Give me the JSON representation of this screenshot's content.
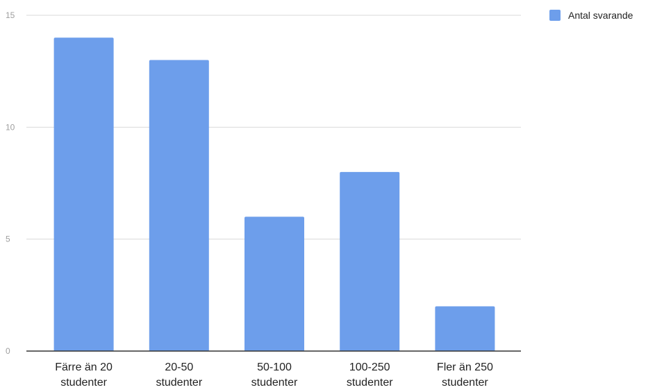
{
  "chart_data": {
    "type": "bar",
    "categories": [
      [
        "Färre än 20",
        "studenter"
      ],
      [
        "20-50",
        "studenter"
      ],
      [
        "50-100",
        "studenter"
      ],
      [
        "100-250",
        "studenter"
      ],
      [
        "Fler än 250",
        "studenter"
      ]
    ],
    "series": [
      {
        "name": "Antal svarande",
        "values": [
          14,
          13,
          6,
          8,
          2
        ]
      }
    ],
    "ylim": [
      0,
      15
    ],
    "yticks": [
      0,
      5,
      10,
      15
    ],
    "grid": true,
    "legend_position": "top-right",
    "colors": {
      "bar": "#6d9eeb",
      "grid": "#d9d9d9",
      "axis": "#333333",
      "tick": "#9e9e9e"
    }
  }
}
